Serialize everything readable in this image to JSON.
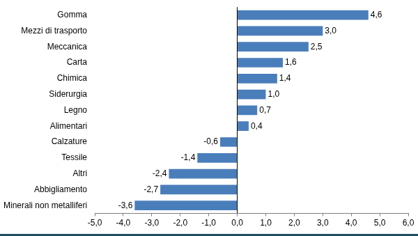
{
  "chart_data": {
    "type": "bar",
    "orientation": "horizontal",
    "categories": [
      "Gomma",
      "Mezzi di trasporto",
      "Meccanica",
      "Carta",
      "Chimica",
      "Siderurgia",
      "Legno",
      "Alimentari",
      "Calzature",
      "Tessile",
      "Altri",
      "Abbigliamento",
      "Minerali non metalliferi"
    ],
    "values": [
      4.6,
      3.0,
      2.5,
      1.6,
      1.4,
      1.0,
      0.7,
      0.4,
      -0.6,
      -1.4,
      -2.4,
      -2.7,
      -3.6
    ],
    "value_labels": [
      "4,6",
      "3,0",
      "2,5",
      "1,6",
      "1,4",
      "1,0",
      "0,7",
      "0,4",
      "-0,6",
      "-1,4",
      "-2,4",
      "-2,7",
      "-3,6"
    ],
    "color": "#4a7ebb",
    "xlim": [
      -5,
      6
    ],
    "xticks": [
      {
        "value": -5,
        "label": "-5,0"
      },
      {
        "value": -4,
        "label": "-4,0"
      },
      {
        "value": -3,
        "label": "-3,0"
      },
      {
        "value": -2,
        "label": "-2,0"
      },
      {
        "value": -1,
        "label": "-1,0"
      },
      {
        "value": 0,
        "label": "0,0"
      },
      {
        "value": 1,
        "label": "1,0"
      },
      {
        "value": 2,
        "label": "2,0"
      },
      {
        "value": 3,
        "label": "3,0"
      },
      {
        "value": 4,
        "label": "4,0"
      },
      {
        "value": 5,
        "label": "5,0"
      },
      {
        "value": 6,
        "label": "6,0"
      }
    ],
    "grid": false,
    "data_labels": true
  }
}
